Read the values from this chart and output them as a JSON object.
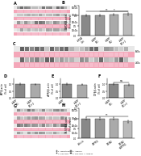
{
  "panel_B": {
    "categories": [
      "shRNA\nCtrl",
      "shAPP\nPS1",
      "shAPP\nPS2",
      "shAPP\nPS1+2"
    ],
    "values": [
      1.0,
      1.02,
      1.05,
      1.08
    ],
    "errors": [
      0.04,
      0.05,
      0.05,
      0.06
    ],
    "bar_colors": [
      "#888888",
      "#999999",
      "#aaaaaa",
      "#bbbbbb"
    ],
    "ylabel": "GAPDH/β-actin\n(% of control)",
    "ylim": [
      0.0,
      1.5
    ],
    "yticks": [
      0.0,
      0.5,
      1.0,
      1.5
    ]
  },
  "panel_D": {
    "categories": [
      "shAPP\nPS1",
      "shAPP\nPS1+2"
    ],
    "values": [
      1.0,
      0.98
    ],
    "errors": [
      0.04,
      0.05
    ],
    "bar_colors": [
      "#888888",
      "#aaaaaa"
    ],
    "ylabel": "APP/β-actin\n(% of ctrl)",
    "ylim": [
      0.0,
      1.4
    ],
    "yticks": [
      0.0,
      0.5,
      1.0
    ]
  },
  "panel_E": {
    "categories": [
      "shAPP\nPS1",
      "shAPP\nPS1+2"
    ],
    "values": [
      1.0,
      0.96
    ],
    "errors": [
      0.05,
      0.04
    ],
    "bar_colors": [
      "#888888",
      "#aaaaaa"
    ],
    "ylabel": "sAPPβ/β-actin\n(% of ctrl)",
    "ylim": [
      0.0,
      1.4
    ],
    "yticks": [
      0.0,
      0.5,
      1.0
    ]
  },
  "panel_F": {
    "categories": [
      "shAPP\nPS1",
      "shAPP\nPS1+2"
    ],
    "values": [
      1.0,
      0.97
    ],
    "errors": [
      0.05,
      0.06
    ],
    "bar_colors": [
      "#888888",
      "#aaaaaa"
    ],
    "ylabel": "CTFβ/β-actin\n(% of ctrl)",
    "ylim": [
      0.0,
      1.4
    ],
    "yticks": [
      0.0,
      0.5,
      1.0
    ]
  },
  "panel_H": {
    "categories": [
      "Vehicle",
      "APPPS1",
      "5XFAD",
      "5XFAD\n+APPPS1"
    ],
    "values": [
      1.0,
      1.0,
      1.0,
      0.85
    ],
    "errors": [
      0.05,
      0.06,
      0.05,
      0.05
    ],
    "bar_colors": [
      "#888888",
      "#999999",
      "#aaaaaa",
      "#bbbbbb"
    ],
    "ylabel": "Pτ-S396/β-actin\n(% of control)",
    "ylim": [
      0.0,
      1.5
    ],
    "yticks": [
      0.0,
      0.5,
      1.0,
      1.5
    ]
  },
  "gel_pink": "#f4a7b9",
  "gel_pink2": "#f7c5d3",
  "gel_band": "#555555",
  "background": "#ffffff",
  "legend": [
    {
      "label": "1- Wild-type",
      "color": "#bbbbbb"
    },
    {
      "label": "3- 5XFAD%",
      "color": "#777777"
    },
    {
      "label": "2- APPPS1",
      "color": "#999999"
    },
    {
      "label": "4- 5XFAD% + APPPS1",
      "color": "#444444"
    }
  ]
}
